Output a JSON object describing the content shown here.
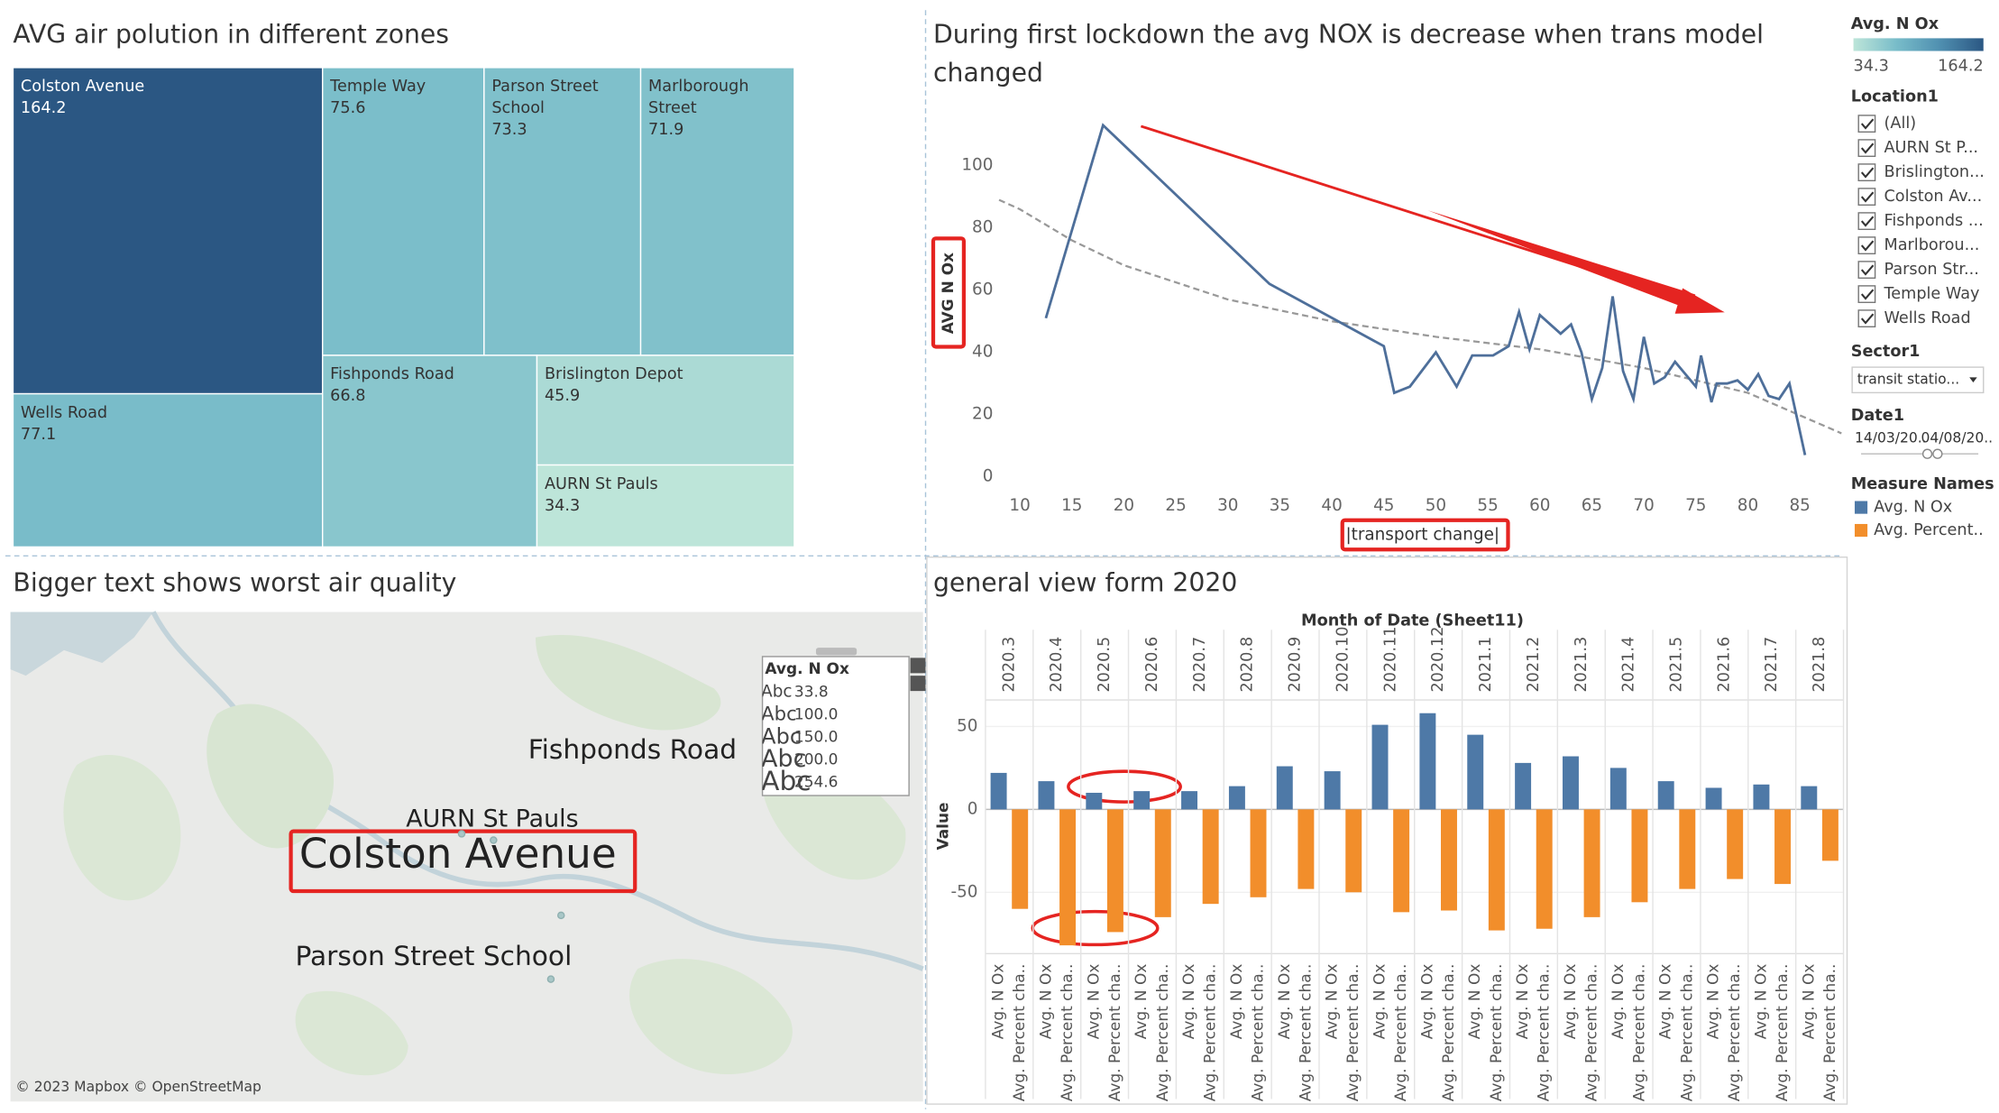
{
  "chart_data": [
    {
      "type": "treemap",
      "title": "AVG air polution in different zones",
      "categories": [
        "Colston Avenue",
        "Wells Road",
        "Temple Way",
        "Parson Street School",
        "Marlborough Street",
        "Fishponds Road",
        "Brislington Depot",
        "AURN St Pauls"
      ],
      "values": [
        164.2,
        77.1,
        75.6,
        73.3,
        71.9,
        66.8,
        45.9,
        34.3
      ],
      "color_range": [
        34.3,
        164.2
      ],
      "color_stops": [
        "#bde5d9",
        "#78bcc9",
        "#4f8fb0",
        "#2b5783"
      ]
    },
    {
      "type": "line",
      "title": "During first lockdown the avg NOX is decrease when trans model changed",
      "xlabel": "|transport change|",
      "ylabel": "AVG N Ox",
      "color": "#4e6f9a",
      "x": [
        12.5,
        18,
        34,
        45,
        46,
        47.5,
        50,
        52,
        53.5,
        55.5,
        57,
        58,
        59,
        60,
        62,
        63,
        64,
        65,
        66,
        67,
        68,
        69,
        70,
        71,
        72,
        73,
        74,
        75,
        75.5,
        76.5,
        77,
        78,
        79,
        80,
        81,
        82,
        83,
        84,
        85.5
      ],
      "values": [
        51,
        113,
        62,
        42,
        27,
        29,
        40,
        29,
        39,
        39,
        42,
        53,
        41,
        52,
        46,
        49,
        40,
        25,
        35,
        58,
        34,
        25,
        45,
        30,
        32,
        37,
        33,
        29,
        39,
        24,
        30,
        30,
        31,
        28,
        33,
        26,
        25,
        30,
        7
      ],
      "trend": {
        "color": "#999999",
        "x": [
          8,
          10,
          15,
          20,
          30,
          40,
          50,
          60,
          70,
          80,
          89
        ],
        "values": [
          89,
          86,
          76,
          68,
          57,
          50,
          45,
          41,
          35,
          27,
          14
        ]
      },
      "xlim": [
        7,
        89
      ],
      "ylim": [
        -4,
        118
      ],
      "xticks": [
        10,
        15,
        20,
        25,
        30,
        35,
        40,
        45,
        50,
        55,
        60,
        65,
        70,
        75,
        80,
        85
      ],
      "yticks": [
        0,
        20,
        40,
        60,
        80,
        100
      ],
      "grid": false
    },
    {
      "type": "bar",
      "title": "general view form 2020",
      "header": "Month of Date (Sheet11)",
      "ylabel": "Value",
      "categories": [
        "2020.3",
        "2020.4",
        "2020.5",
        "2020.6",
        "2020.7",
        "2020.8",
        "2020.9",
        "2020.10",
        "2020.11",
        "2020.12",
        "2021.1",
        "2021.2",
        "2021.3",
        "2021.4",
        "2021.5",
        "2021.6",
        "2021.7",
        "2021.8"
      ],
      "series": [
        {
          "name": "Avg. N Ox",
          "color": "#4e79a7",
          "values": [
            22,
            17,
            10,
            11,
            11,
            14,
            26,
            23,
            51,
            58,
            45,
            28,
            32,
            25,
            17,
            13,
            15,
            14
          ]
        },
        {
          "name": "Avg. Percent cha..",
          "color": "#f28e2b",
          "values": [
            -60,
            -82,
            -74,
            -65,
            -57,
            -53,
            -48,
            -50,
            -62,
            -61,
            -73,
            -72,
            -65,
            -56,
            -48,
            -42,
            -45,
            -31
          ]
        }
      ],
      "ylim": [
        -87,
        66
      ],
      "yticks": [
        -50,
        0,
        50
      ]
    }
  ],
  "map": {
    "title": "Bigger text shows worst air quality",
    "labels": [
      "Fishponds Road",
      "AURN St Pauls",
      "Colston Avenue",
      "Parson Street School"
    ],
    "attribution": "© 2023 Mapbox © OpenStreetMap",
    "legend": {
      "title": "Avg. N Ox",
      "icon": "Abc",
      "items": [
        "33.8",
        "100.0",
        "150.0",
        "200.0",
        "254.6"
      ]
    }
  },
  "panel": {
    "color_legend_title": "Avg. N Ox",
    "location": {
      "title": "Location1",
      "items": [
        "(All)",
        "AURN St P...",
        "Brislington...",
        "Colston Av...",
        "Fishponds ...",
        "Marlborou...",
        "Parson Str...",
        "Temple Way",
        "Wells Road"
      ]
    },
    "sector": {
      "title": "Sector1",
      "value": "transit statio..."
    },
    "date": {
      "title": "Date1",
      "start": "14/03/20..",
      "end": "04/08/20.."
    },
    "measure_names": {
      "title": "Measure Names",
      "items": [
        "Avg. N Ox",
        "Avg. Percent.."
      ]
    }
  }
}
